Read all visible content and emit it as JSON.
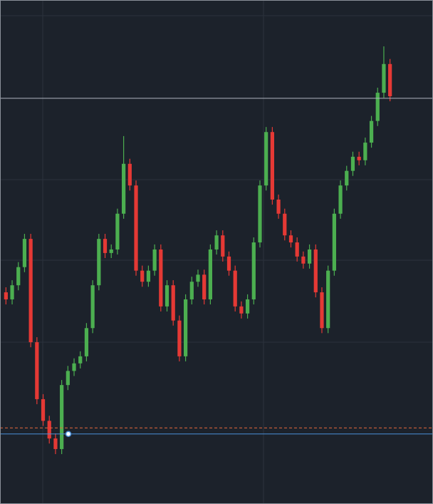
{
  "chart_data": {
    "type": "candlestick",
    "ylim": [
      0,
      100
    ],
    "background": "#1c222b",
    "up_color": "#4caf50",
    "down_color": "#e53935",
    "open": [
      42.0,
      40.6,
      43.4,
      47.0,
      52.6,
      32.1,
      20.8,
      16.5,
      13.0,
      10.9,
      23.6,
      26.4,
      27.9,
      29.3,
      34.9,
      43.4,
      52.6,
      49.8,
      50.5,
      57.6,
      67.5,
      63.2,
      46.3,
      44.1,
      46.3,
      50.5,
      39.2,
      43.4,
      36.4,
      29.3,
      40.6,
      44.1,
      45.5,
      40.6,
      50.5,
      53.3,
      49.1,
      46.3,
      39.2,
      37.8,
      40.6,
      51.9,
      63.2,
      73.8,
      60.4,
      57.6,
      53.3,
      51.9,
      49.1,
      47.7,
      50.5,
      42.0,
      34.9,
      46.3,
      57.6,
      63.2,
      66.1,
      68.9,
      68.2,
      71.7,
      76.0,
      81.6,
      87.3
    ],
    "high": [
      43.0,
      44.4,
      48.0,
      53.6,
      53.6,
      33.1,
      21.8,
      17.5,
      14.0,
      24.6,
      27.4,
      28.9,
      30.3,
      35.9,
      44.4,
      53.6,
      53.6,
      51.5,
      58.6,
      73.0,
      68.5,
      64.2,
      47.3,
      47.3,
      51.5,
      51.5,
      44.4,
      44.4,
      37.4,
      41.6,
      45.1,
      46.5,
      46.5,
      51.5,
      54.3,
      54.3,
      50.1,
      47.3,
      40.2,
      41.6,
      52.9,
      64.2,
      74.8,
      74.8,
      61.4,
      58.6,
      54.3,
      52.9,
      50.1,
      51.5,
      51.5,
      43.0,
      47.3,
      58.6,
      64.2,
      67.1,
      69.9,
      69.9,
      72.7,
      77.0,
      82.6,
      90.8,
      88.3
    ],
    "low": [
      39.6,
      39.6,
      42.4,
      46.0,
      31.1,
      19.8,
      15.5,
      12.0,
      9.9,
      9.9,
      22.6,
      25.4,
      26.9,
      28.3,
      33.9,
      42.4,
      48.8,
      48.8,
      49.5,
      56.6,
      62.2,
      45.3,
      43.1,
      43.1,
      45.3,
      38.2,
      38.2,
      35.4,
      28.3,
      28.3,
      39.6,
      43.1,
      39.6,
      39.6,
      49.5,
      48.1,
      45.3,
      38.2,
      36.8,
      36.8,
      39.6,
      50.9,
      62.2,
      59.4,
      56.6,
      52.3,
      50.9,
      48.1,
      46.7,
      46.7,
      41.0,
      33.9,
      33.9,
      45.3,
      56.6,
      62.2,
      65.1,
      67.2,
      67.2,
      70.7,
      75.0,
      80.6,
      79.9
    ],
    "close": [
      40.6,
      43.4,
      47.0,
      52.6,
      32.1,
      20.8,
      16.5,
      13.0,
      10.9,
      23.6,
      26.4,
      27.9,
      29.3,
      34.9,
      43.4,
      52.6,
      49.8,
      50.5,
      57.6,
      67.5,
      63.2,
      46.3,
      44.1,
      46.3,
      50.5,
      39.2,
      43.4,
      36.4,
      29.3,
      40.6,
      44.1,
      45.5,
      40.6,
      50.5,
      53.3,
      49.1,
      46.3,
      39.2,
      37.8,
      40.6,
      51.9,
      63.2,
      73.8,
      60.4,
      57.6,
      53.3,
      51.9,
      49.1,
      47.7,
      50.5,
      42.0,
      34.9,
      46.3,
      57.6,
      63.2,
      66.1,
      68.9,
      68.2,
      71.7,
      76.0,
      81.6,
      87.3,
      80.9
    ],
    "price_lines": [
      {
        "value": 80.5,
        "color": "#b0b6bf",
        "style": "solid"
      },
      {
        "value": 15.1,
        "color": "#e8693c",
        "style": "dashed"
      },
      {
        "value": 13.9,
        "color": "#4a90d9",
        "style": "solid"
      }
    ]
  }
}
